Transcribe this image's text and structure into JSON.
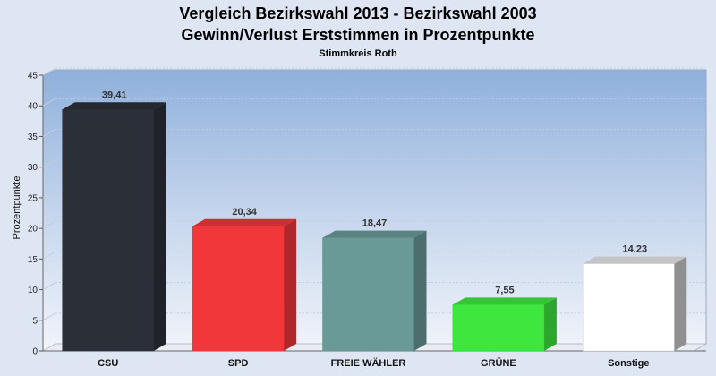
{
  "chart_data": {
    "type": "bar",
    "title": "Vergleich Bezirkswahl 2013 - Bezirkswahl 2003",
    "subtitle": "Gewinn/Verlust Erststimmen in Prozentpunkte",
    "subsubtitle": "Stimmkreis Roth",
    "xlabel": "",
    "ylabel": "Prozentpunkte",
    "ylim": [
      0,
      45
    ],
    "yticks": [
      0,
      5,
      10,
      15,
      20,
      25,
      30,
      35,
      40,
      45
    ],
    "grid": true,
    "categories": [
      "CSU",
      "SPD",
      "FREIE WÄHLER",
      "GRÜNE",
      "Sonstige"
    ],
    "values": [
      39.41,
      20.34,
      18.47,
      7.55,
      14.23
    ],
    "value_labels": [
      "39,41",
      "20,34",
      "18,47",
      "7,55",
      "14,23"
    ],
    "colors": [
      "#2b2f37",
      "#f2373a",
      "#6a9a98",
      "#3ee63e",
      "#ffffff"
    ]
  }
}
